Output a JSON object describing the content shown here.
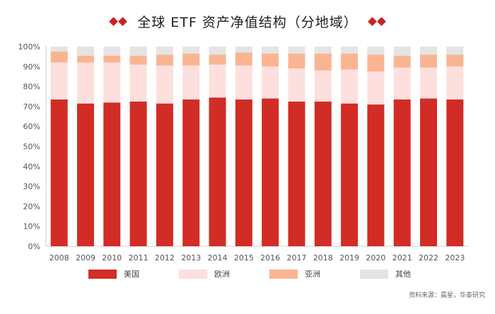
{
  "title": "全球 ETF 资产净值结构（分地域）",
  "source": "资料来源：晨星，华泰研究",
  "colors": {
    "美国": "#d12d26",
    "欧洲": "#fde0de",
    "亚洲": "#f9b592",
    "其他": "#e4e4e4",
    "accent": "#cc2222"
  },
  "chart_data": {
    "type": "bar",
    "stacked": true,
    "title": "全球 ETF 资产净值结构（分地域）",
    "xlabel": "",
    "ylabel": "",
    "ylim": [
      0,
      100
    ],
    "y_ticks": [
      "0%",
      "10%",
      "20%",
      "30%",
      "40%",
      "50%",
      "60%",
      "70%",
      "80%",
      "90%",
      "100%"
    ],
    "categories": [
      "2008",
      "2009",
      "2010",
      "2011",
      "2012",
      "2013",
      "2014",
      "2015",
      "2016",
      "2017",
      "2018",
      "2019",
      "2020",
      "2021",
      "2022",
      "2023"
    ],
    "series": [
      {
        "name": "美国",
        "values": [
          73.5,
          71.5,
          72,
          72.5,
          71.5,
          73.5,
          74.5,
          73.5,
          74,
          72.5,
          72.5,
          71.5,
          71,
          73.5,
          74,
          73.5
        ]
      },
      {
        "name": "欧洲",
        "values": [
          18.5,
          20.5,
          20,
          18.5,
          19,
          17,
          16.5,
          17,
          16,
          16.5,
          15.5,
          17,
          16.5,
          16,
          15.5,
          16.5
        ]
      },
      {
        "name": "亚洲",
        "values": [
          5.5,
          3.5,
          3.5,
          4.5,
          5.5,
          6,
          5,
          6.5,
          6.5,
          7.5,
          8.5,
          8,
          8.5,
          6,
          6.5,
          6
        ]
      },
      {
        "name": "其他",
        "values": [
          2.5,
          4.5,
          4.5,
          4.5,
          4,
          3.5,
          4,
          3,
          3.5,
          3.5,
          3.5,
          3.5,
          4,
          4.5,
          4,
          4
        ]
      }
    ],
    "legend": [
      "美国",
      "欧洲",
      "亚洲",
      "其他"
    ],
    "legend_position": "bottom",
    "grid": true
  }
}
